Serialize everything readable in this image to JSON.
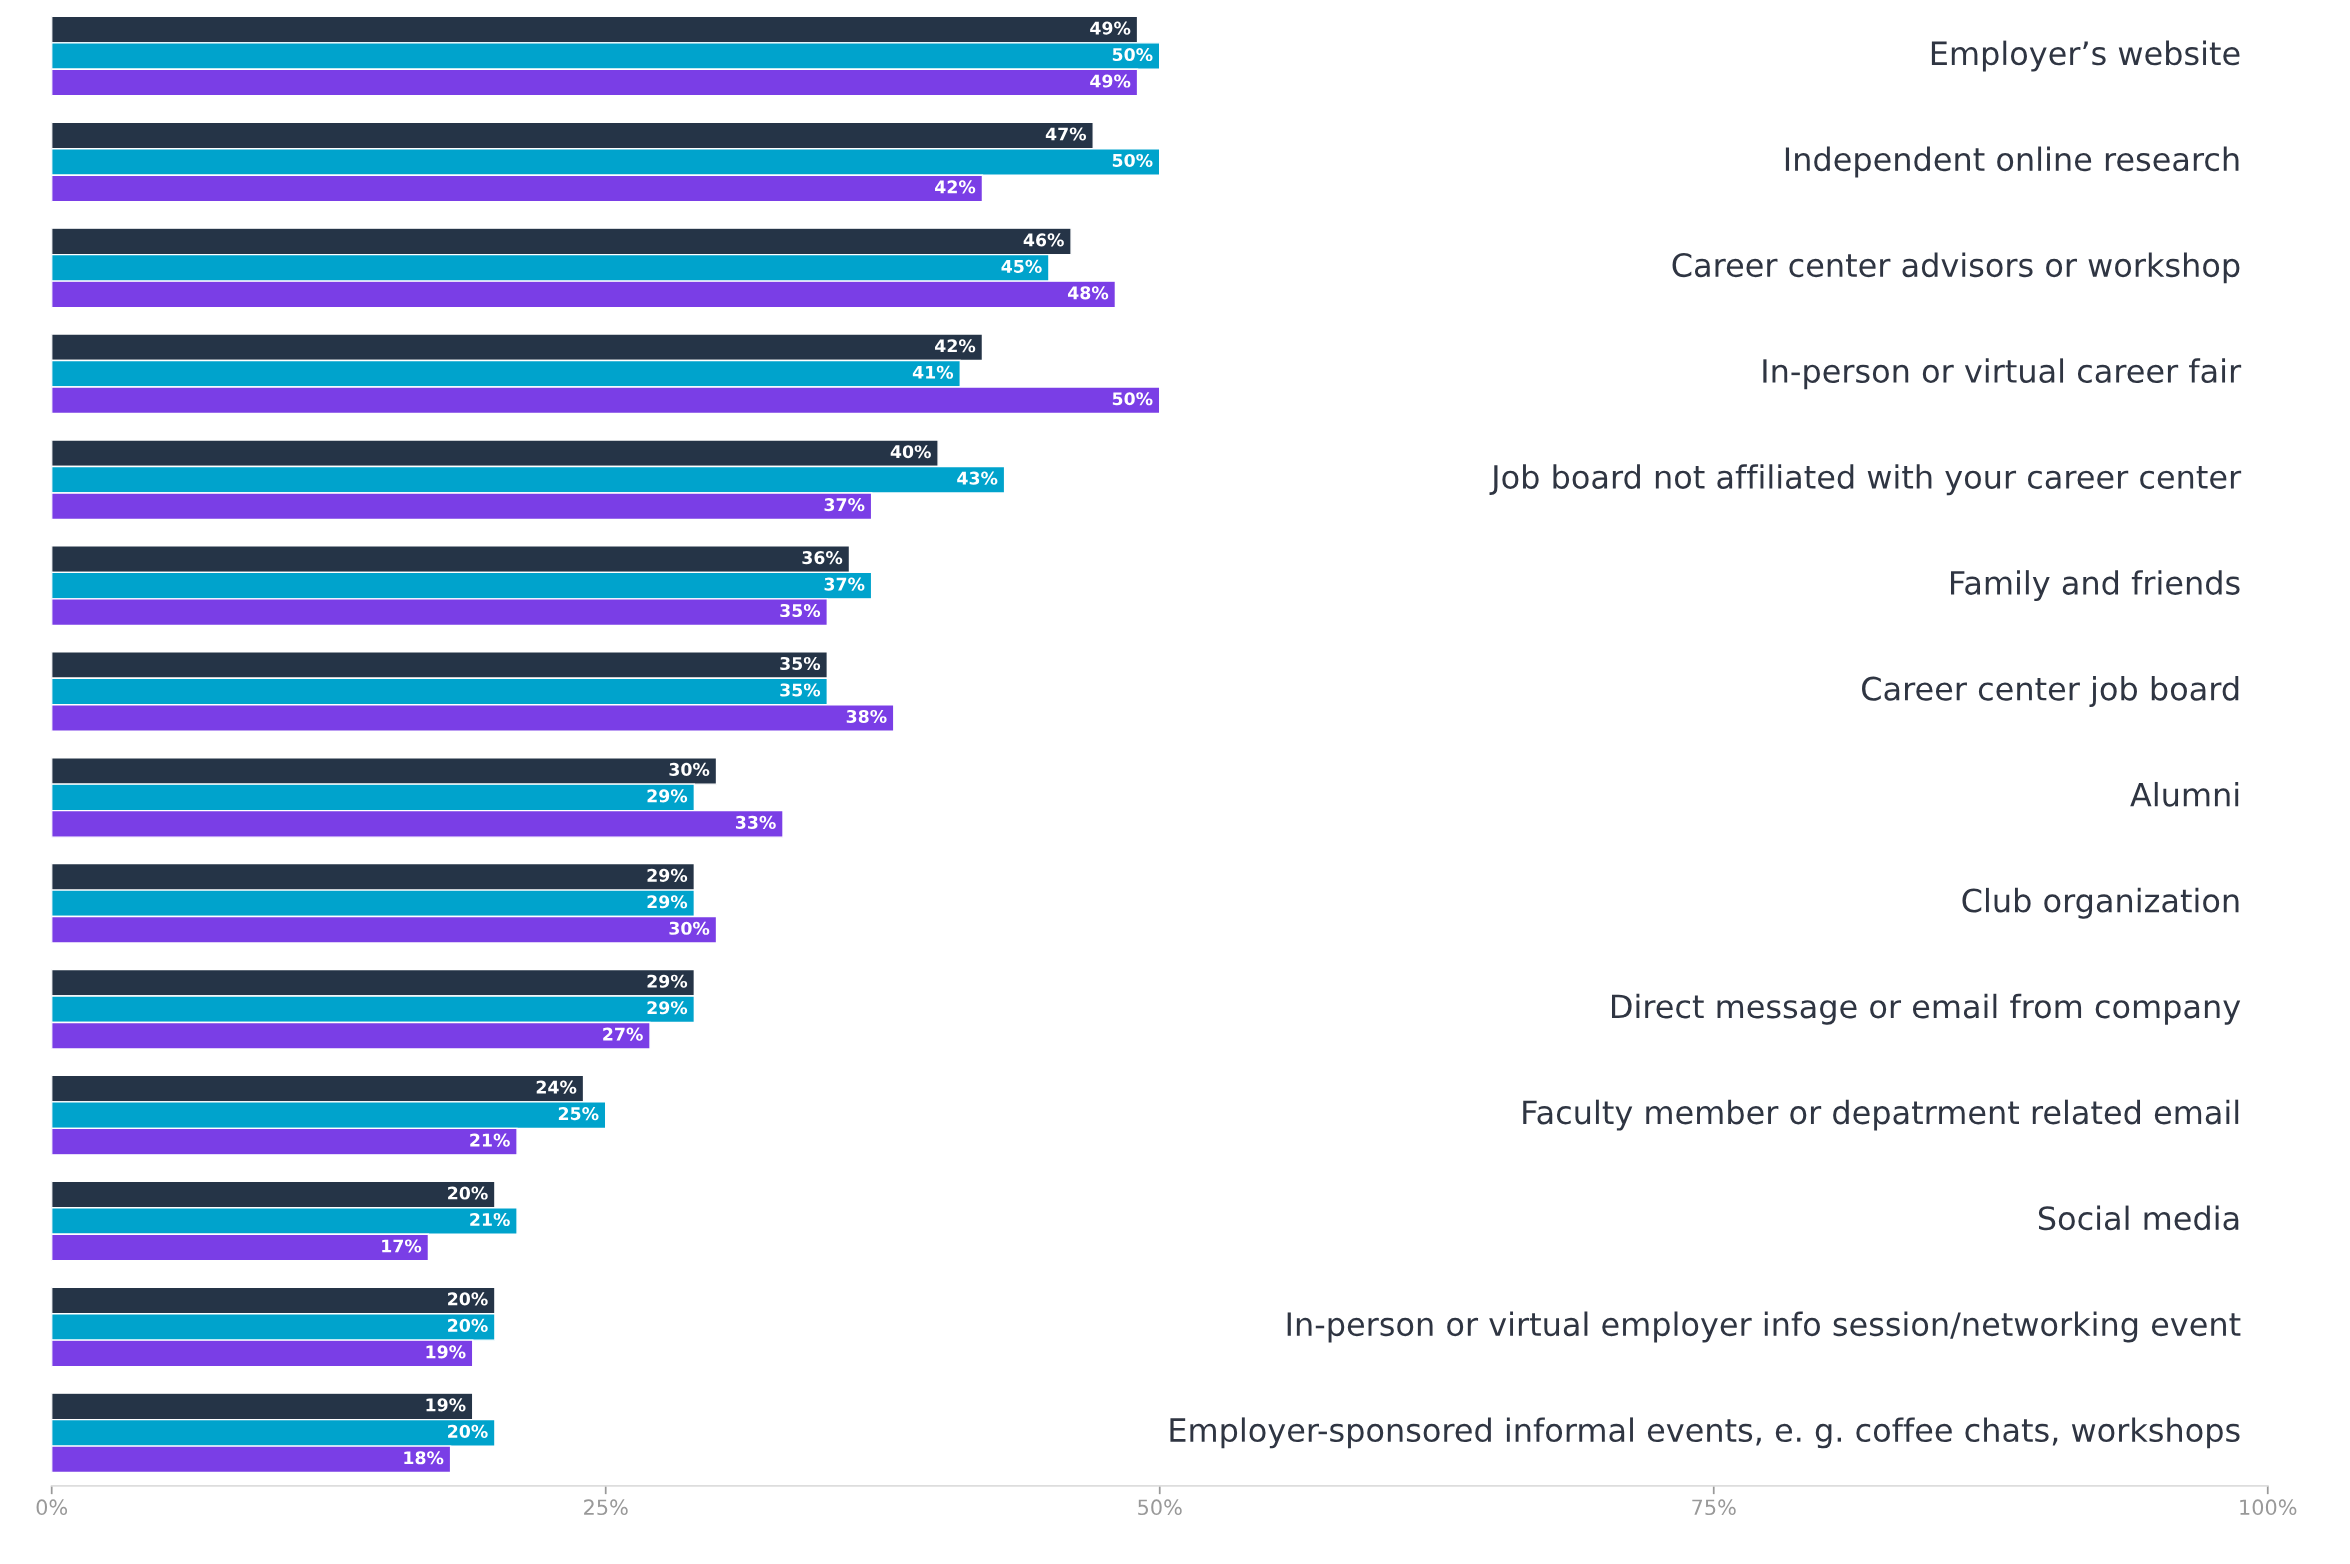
{
  "chart_data": {
    "type": "bar",
    "orientation": "horizontal",
    "categories": [
      "Employer’s website",
      "Independent online research",
      "Career center advisors or workshop",
      "In-person or virtual career fair",
      "Job board not affiliated with your career center",
      "Family and friends",
      "Career center job board",
      "Alumni",
      "Club organization",
      "Direct message or email from company",
      "Faculty member or depatrment related email",
      "Social media",
      "In-person or virtual employer info session/networking event",
      "Employer-sponsored informal events, e. g. coffee chats, workshops"
    ],
    "series": [
      {
        "color": "#253447",
        "values": [
          49,
          47,
          46,
          42,
          40,
          36,
          35,
          30,
          29,
          29,
          24,
          20,
          20,
          19
        ],
        "value_labels": [
          "49%",
          "47%",
          "46%",
          "42%",
          "40%",
          "36%",
          "35%",
          "30%",
          "29%",
          "29%",
          "24%",
          "20%",
          "20%",
          "19%"
        ]
      },
      {
        "color": "#00a3cc",
        "values": [
          50,
          50,
          45,
          41,
          43,
          37,
          35,
          29,
          29,
          29,
          25,
          21,
          20,
          20
        ],
        "value_labels": [
          "50%",
          "50%",
          "45%",
          "41%",
          "43%",
          "37%",
          "35%",
          "29%",
          "29%",
          "29%",
          "25%",
          "21%",
          "20%",
          "20%"
        ]
      },
      {
        "color": "#7a3ee6",
        "values": [
          49,
          42,
          48,
          50,
          37,
          35,
          38,
          33,
          30,
          27,
          21,
          17,
          19,
          18
        ],
        "value_labels": [
          "49%",
          "42%",
          "48%",
          "50%",
          "37%",
          "35%",
          "38%",
          "33%",
          "30%",
          "27%",
          "21%",
          "17%",
          "19%",
          "18%"
        ]
      }
    ],
    "xlim": [
      0,
      100
    ],
    "xticks": [
      {
        "value": 0,
        "label": "0%"
      },
      {
        "value": 25,
        "label": "25%"
      },
      {
        "value": 50,
        "label": "50%"
      },
      {
        "value": 75,
        "label": "75%"
      },
      {
        "value": 100,
        "label": "100%"
      }
    ],
    "grid": false,
    "legend": false
  }
}
